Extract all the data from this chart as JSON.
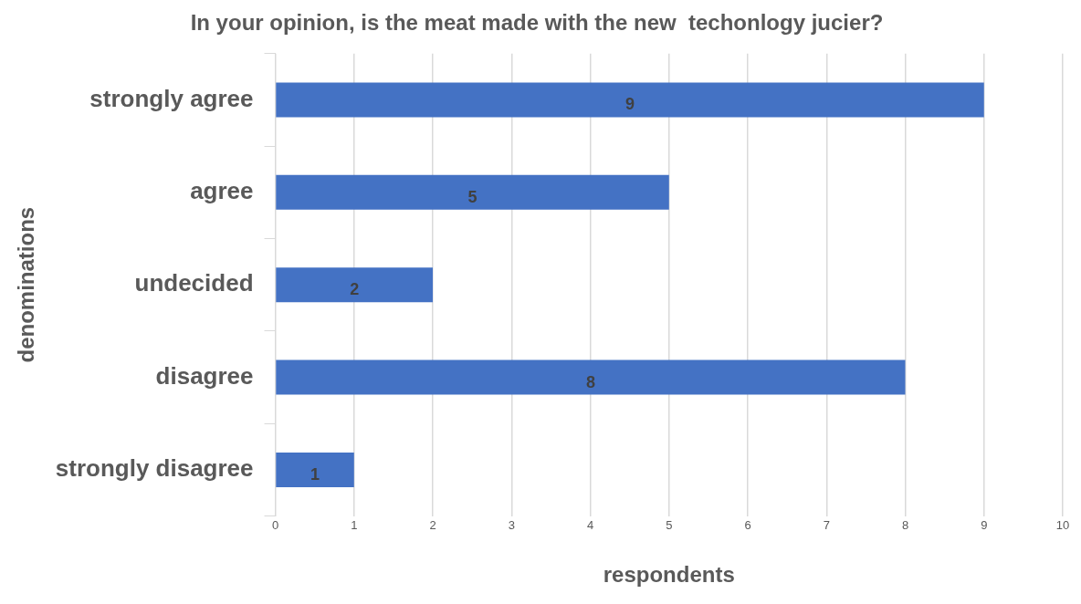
{
  "chart_data": {
    "type": "bar",
    "orientation": "horizontal",
    "title": "In your opinion, is the meat made with the new  techonlogy jucier?",
    "xlabel": "respondents",
    "ylabel": "denominations",
    "categories": [
      "strongly agree",
      "agree",
      "undecided",
      "disagree",
      "strongly disagree"
    ],
    "values": [
      9,
      5,
      2,
      8,
      1
    ],
    "color": "#4472c4",
    "xlim": [
      0,
      10
    ],
    "xticks": [
      0,
      1,
      2,
      3,
      4,
      5,
      6,
      7,
      8,
      9,
      10
    ],
    "grid": "x",
    "data_labels": true,
    "legend": false
  }
}
